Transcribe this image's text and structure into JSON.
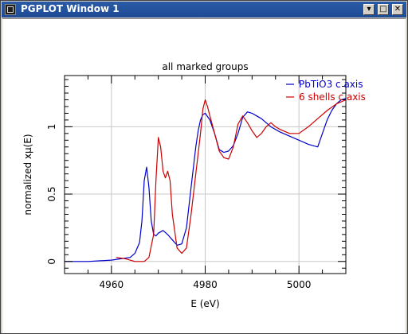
{
  "window": {
    "title": "PGPLOT Window 1",
    "controls": [
      "minimize",
      "maximize",
      "close"
    ]
  },
  "chart_data": {
    "type": "line",
    "title": "all marked groups",
    "xlabel": "E (eV)",
    "ylabel": "normalized xμ(E)",
    "xlim": [
      4950,
      5010
    ],
    "ylim": [
      -0.09,
      1.38
    ],
    "xticks": [
      4960,
      4980,
      5000
    ],
    "xtick_labels": [
      "4960",
      "4980",
      "5000"
    ],
    "yticks": [
      0,
      0.5,
      1
    ],
    "ytick_labels": [
      "0",
      "0.5",
      "1"
    ],
    "grid": true,
    "legend_position": "top-right",
    "series": [
      {
        "name": "PbTiO3 c axis",
        "color": "#0000cc",
        "x": [
          4950,
          4955,
          4960,
          4962,
          4964,
          4965,
          4966,
          4966.5,
          4967,
          4967.5,
          4968,
          4968.5,
          4969,
          4969.5,
          4970,
          4971,
          4972,
          4973,
          4974,
          4975,
          4976,
          4977,
          4978,
          4978.5,
          4979,
          4979.5,
          4980,
          4981,
          4982,
          4983,
          4984,
          4985,
          4986,
          4987,
          4988,
          4989,
          4990,
          4991,
          4992,
          4993,
          4994,
          4995,
          4996,
          4998,
          5000,
          5002,
          5004,
          5005,
          5006,
          5007,
          5008,
          5009,
          5010
        ],
        "y": [
          0.0,
          0.0,
          0.01,
          0.02,
          0.03,
          0.06,
          0.14,
          0.3,
          0.6,
          0.7,
          0.55,
          0.3,
          0.2,
          0.19,
          0.21,
          0.23,
          0.2,
          0.16,
          0.12,
          0.13,
          0.25,
          0.55,
          0.85,
          0.97,
          1.05,
          1.09,
          1.1,
          1.05,
          0.95,
          0.83,
          0.81,
          0.82,
          0.86,
          0.95,
          1.07,
          1.11,
          1.1,
          1.08,
          1.06,
          1.03,
          1.0,
          0.98,
          0.96,
          0.93,
          0.9,
          0.87,
          0.85,
          0.95,
          1.05,
          1.12,
          1.17,
          1.2,
          1.21
        ]
      },
      {
        "name": "6 shells c axis",
        "color": "#cc0000",
        "x": [
          4961,
          4963,
          4965,
          4967,
          4968,
          4969,
          4969.5,
          4970,
          4970.5,
          4971,
          4971.5,
          4972,
          4972.5,
          4973,
          4974,
          4975,
          4976,
          4977,
          4978,
          4979,
          4979.5,
          4980,
          4980.5,
          4981,
          4982,
          4983,
          4984,
          4985,
          4986,
          4987,
          4988,
          4989,
          4990,
          4991,
          4992,
          4993,
          4994,
          4995,
          4996,
          4998,
          5000,
          5002,
          5004,
          5006,
          5008,
          5010
        ],
        "y": [
          0.03,
          0.02,
          0.0,
          0.0,
          0.03,
          0.2,
          0.6,
          0.92,
          0.85,
          0.67,
          0.62,
          0.67,
          0.6,
          0.35,
          0.1,
          0.06,
          0.1,
          0.35,
          0.65,
          0.95,
          1.13,
          1.2,
          1.15,
          1.08,
          0.95,
          0.82,
          0.77,
          0.76,
          0.85,
          1.02,
          1.08,
          1.03,
          0.97,
          0.92,
          0.95,
          1.0,
          1.03,
          1.0,
          0.98,
          0.95,
          0.95,
          1.0,
          1.06,
          1.12,
          1.17,
          1.2
        ]
      }
    ]
  }
}
